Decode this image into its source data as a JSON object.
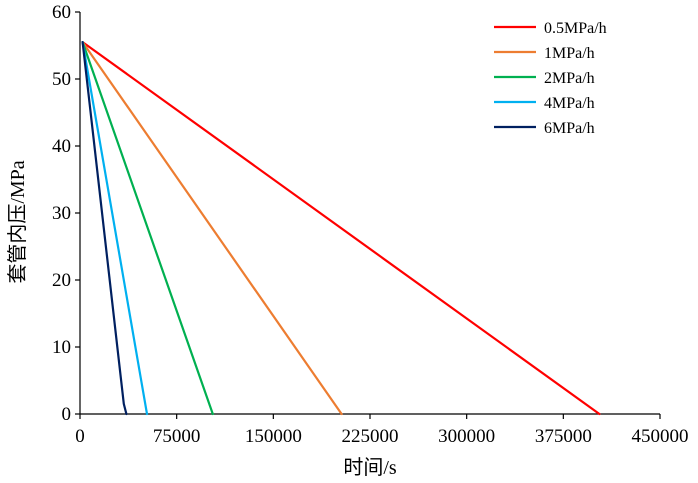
{
  "chart_data": {
    "type": "line",
    "xlabel": "时间/s",
    "ylabel": "套管内压/MPa",
    "xlim": [
      0,
      450000
    ],
    "ylim": [
      0,
      60
    ],
    "x_ticks": [
      "0",
      "75000",
      "150000",
      "225000",
      "300000",
      "375000",
      "450000"
    ],
    "y_ticks": [
      "0",
      "10",
      "20",
      "30",
      "40",
      "50",
      "60"
    ],
    "grid": false,
    "legend_position": "top-right",
    "series": [
      {
        "name": "0.5MPa/h",
        "color": "#FF0000",
        "points": [
          [
            2000,
            55.5
          ],
          [
            403000,
            0
          ]
        ]
      },
      {
        "name": "1MPa/h",
        "color": "#ED7D31",
        "points": [
          [
            2000,
            55.5
          ],
          [
            203000,
            0
          ]
        ]
      },
      {
        "name": "2MPa/h",
        "color": "#00B050",
        "points": [
          [
            2000,
            55.5
          ],
          [
            103000,
            0
          ]
        ]
      },
      {
        "name": "4MPa/h",
        "color": "#00B0F0",
        "points": [
          [
            2000,
            55.5
          ],
          [
            52000,
            0
          ]
        ]
      },
      {
        "name": "6MPa/h",
        "color": "#002060",
        "points": [
          [
            2000,
            55.5
          ],
          [
            34000,
            1.5
          ],
          [
            36000,
            0
          ]
        ]
      }
    ]
  }
}
